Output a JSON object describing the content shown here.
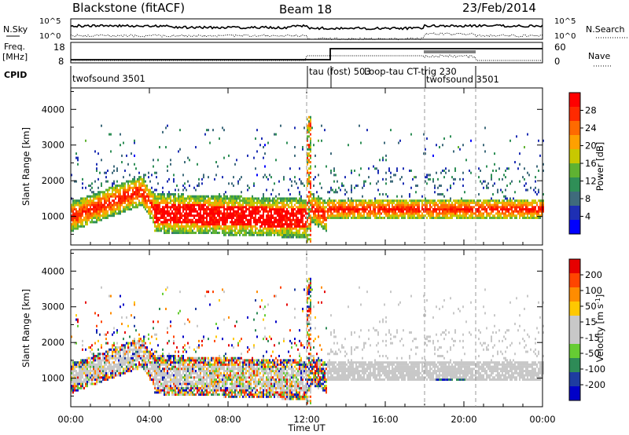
{
  "header": {
    "title": "Blackstone (fitACF)",
    "beam": "Beam 18",
    "date": "23/Feb/2014"
  },
  "panels": {
    "nsky": {
      "label": "N.Sky",
      "right_label": "N.Search",
      "ticks": [
        "10^5",
        "10^0"
      ],
      "right_ticks": [
        "10^5",
        "10^0"
      ]
    },
    "freq": {
      "label_line1": "Freq.",
      "label_line2": "[MHz]",
      "ticks": [
        "18",
        "8"
      ],
      "right_label": "Nave",
      "right_ticks": [
        "60",
        "0"
      ]
    },
    "cpid": {
      "label": "CPID"
    }
  },
  "cpid_segments": [
    {
      "text": "twofsound 3501",
      "start_h": 0.0
    },
    {
      "text": "tau (fost) 503",
      "start_h": 12.0
    },
    {
      "text": "Loop-tau CT-trig 230",
      "start_h": 13.2
    },
    {
      "text": "twofsound 3501",
      "start_h": 18.0
    }
  ],
  "colors": {
    "power_scale": [
      "#0000ff",
      "#1e2fb4",
      "#3f6b7c",
      "#2f8f57",
      "#5fb232",
      "#c8c800",
      "#ffa000",
      "#ff6a00",
      "#ff2a00",
      "#ff0000"
    ],
    "velocity_scale": [
      "#0000c8",
      "#1e3ca0",
      "#2e8b57",
      "#66cc33",
      "#c8c8c8",
      "#c8c8c8",
      "#ffc800",
      "#ff8c00",
      "#ff4500",
      "#e60000"
    ]
  },
  "chart_data": [
    {
      "type": "heatmap",
      "name": "Power",
      "ylabel": "Slant Range [km]",
      "y_ticks": [
        1000,
        2000,
        3000,
        4000
      ],
      "ylim": [
        200,
        4600
      ],
      "colorbar": {
        "label": "Power [dB]",
        "ticks": [
          4,
          8,
          12,
          16,
          20,
          24,
          28
        ],
        "range": [
          0,
          32
        ]
      }
    },
    {
      "type": "heatmap",
      "name": "Velocity",
      "ylabel": "Slant Range [km]",
      "y_ticks": [
        1000,
        2000,
        3000,
        4000
      ],
      "ylim": [
        200,
        4600
      ],
      "colorbar": {
        "label": "Velocity [m s^-1]",
        "ticks": [
          200,
          100,
          50,
          15,
          -15,
          -50,
          -100,
          -200
        ]
      },
      "xlabel": "Time UT",
      "x_ticks": [
        "00:00",
        "04:00",
        "08:00",
        "12:00",
        "16:00",
        "20:00",
        "00:00"
      ],
      "xlim_hours": [
        0,
        24
      ]
    }
  ]
}
